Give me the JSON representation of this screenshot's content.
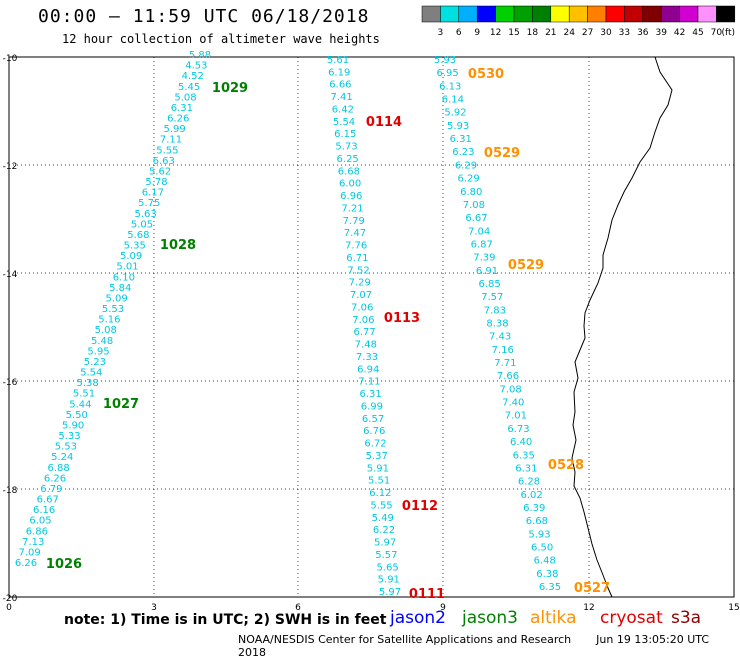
{
  "header": {
    "title": "00:00 – 11:59 UTC 06/18/2018",
    "subtitle": "12 hour collection of altimeter wave heights"
  },
  "colorbar": {
    "unit": "(ft)",
    "colors": [
      "#7f7f7f",
      "#00e0e0",
      "#00b0ff",
      "#0000ff",
      "#00d000",
      "#00a000",
      "#008000",
      "#ffff00",
      "#ffc000",
      "#ff8000",
      "#ff0000",
      "#c00000",
      "#800000",
      "#900090",
      "#d000d0",
      "#ff90ff",
      "#000000"
    ],
    "labels": [
      "3",
      "6",
      "9",
      "12",
      "15",
      "18",
      "21",
      "24",
      "27",
      "30",
      "33",
      "36",
      "39",
      "42",
      "45",
      "70"
    ]
  },
  "axes": {
    "x_ticks": [
      "0",
      "3",
      "6",
      "9",
      "12",
      "15"
    ],
    "y_ticks": [
      "-10",
      "-12",
      "-14",
      "-16",
      "-18",
      "-20"
    ]
  },
  "tracks": [
    {
      "id": "t1",
      "color": "#00c8e0",
      "values": [
        "5.88",
        "4.53",
        "4.52",
        "5.45",
        "5.08",
        "6.31",
        "6.26",
        "5.99",
        "7.11",
        "5.55",
        "6.63",
        "5.62",
        "5.78",
        "6.17",
        "5.75",
        "5.63",
        "5.05",
        "5.68",
        "5.35",
        "5.09",
        "5.01",
        "6.10",
        "5.84",
        "5.09",
        "5.53",
        "5.16",
        "5.08",
        "5.48",
        "5.95",
        "5.23",
        "5.54",
        "5.38",
        "5.51",
        "5.44",
        "5.50",
        "5.90",
        "5.33",
        "5.53",
        "5.24",
        "6.88",
        "6.26",
        "6.79",
        "6.67",
        "6.16",
        "6.05",
        "6.86",
        "7.13",
        "7.09",
        "6.26"
      ]
    },
    {
      "id": "t2",
      "color": "#00c8e0",
      "values": [
        "5.61",
        "6.19",
        "6.66",
        "7.41",
        "6.42",
        "5.54",
        "6.15",
        "5.73",
        "6.25",
        "6.68",
        "6.00",
        "6.96",
        "7.21",
        "7.79",
        "7.47",
        "7.76",
        "6.71",
        "7.52",
        "7.29",
        "7.07",
        "7.06",
        "7.06",
        "6.77",
        "7.48",
        "7.33",
        "6.94",
        "7.11",
        "6.31",
        "6.99",
        "6.57",
        "6.76",
        "6.72",
        "5.37",
        "5.91",
        "5.51",
        "6.12",
        "5.55",
        "5.49",
        "6.22",
        "5.97",
        "5.57",
        "5.65",
        "5.91",
        "5.97"
      ]
    },
    {
      "id": "t3",
      "color": "#00c8e0",
      "values": [
        "5.93",
        "6.95",
        "6.13",
        "6.14",
        "5.92",
        "5.93",
        "6.31",
        "6.23",
        "6.29",
        "6.29",
        "6.80",
        "7.08",
        "6.67",
        "7.04",
        "6.87",
        "7.39",
        "6.91",
        "6.85",
        "7.57",
        "7.83",
        "8.38",
        "7.43",
        "7.16",
        "7.71",
        "7.66",
        "7.08",
        "7.40",
        "7.01",
        "6.73",
        "6.40",
        "6.35",
        "6.31",
        "6.28",
        "6.02",
        "6.39",
        "6.68",
        "5.93",
        "6.50",
        "6.48",
        "6.38",
        "6.35"
      ]
    }
  ],
  "time_labels": [
    {
      "text": "1029",
      "color": "#008000"
    },
    {
      "text": "1028",
      "color": "#008000"
    },
    {
      "text": "1027",
      "color": "#008000"
    },
    {
      "text": "1026",
      "color": "#008000"
    },
    {
      "text": "0114",
      "color": "#e00000"
    },
    {
      "text": "0113",
      "color": "#e00000"
    },
    {
      "text": "0112",
      "color": "#e00000"
    },
    {
      "text": "0111",
      "color": "#e00000"
    },
    {
      "text": "0530",
      "color": "#ff9000"
    },
    {
      "text": "0529",
      "color": "#ff9000"
    },
    {
      "text": "0529",
      "color": "#ff9000"
    },
    {
      "text": "0528",
      "color": "#ff9000"
    },
    {
      "text": "0527",
      "color": "#ff9000"
    }
  ],
  "footer": {
    "note": "note: 1) Time is in UTC; 2) SWH is in feet",
    "satellites": [
      {
        "name": "jason2",
        "color": "#0000ff"
      },
      {
        "name": "jason3",
        "color": "#008000"
      },
      {
        "name": "altika",
        "color": "#ff9000"
      },
      {
        "name": "cryosat",
        "color": "#e00000"
      },
      {
        "name": "s3a",
        "color": "#900000"
      }
    ],
    "credit": "NOAA/NESDIS Center for Satellite Applications and Research",
    "timestamp": "Jun 19 13:05:20 UTC 2018"
  }
}
